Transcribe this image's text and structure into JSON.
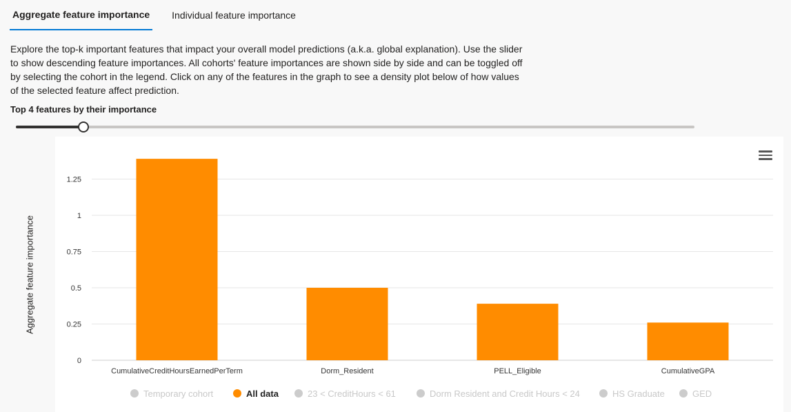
{
  "tabs": [
    {
      "label": "Aggregate feature importance",
      "active": true
    },
    {
      "label": "Individual feature importance",
      "active": false
    }
  ],
  "description": "Explore the top-k important features that impact your overall model predictions (a.k.a. global explanation). Use the slider to show descending feature importances. All cohorts' feature importances are shown side by side and can be toggled off by selecting the cohort in the legend. Click on any of the features in the graph to see a density plot below of how values of the selected feature affect prediction.",
  "top_k_label": "Top 4 features by their importance",
  "slider": {
    "value": 4,
    "fraction": 0.1
  },
  "chart_menu_icon": "hamburger-menu-icon",
  "colors": {
    "accent": "#0078d4",
    "bar": "#ff8c00",
    "legend_off": "#cccccc"
  },
  "chart_data": {
    "type": "bar",
    "categories": [
      "CumulativeCreditHoursEarnedPerTerm",
      "Dorm_Resident",
      "PELL_Eligible",
      "CumulativeGPA"
    ],
    "series": [
      {
        "name": "All data",
        "values": [
          1.39,
          0.5,
          0.39,
          0.26
        ],
        "color": "#ff8c00"
      }
    ],
    "ylabel": "Aggregate feature importance",
    "yticks": [
      "0",
      "0.25",
      "0.5",
      "0.75",
      "1",
      "1.25"
    ],
    "ylim": [
      0,
      1.45
    ],
    "grid": true,
    "legend_position": "bottom",
    "legend": [
      {
        "label": "Temporary cohort",
        "enabled": false
      },
      {
        "label": "All data",
        "enabled": true
      },
      {
        "label": "23 < CreditHours < 61",
        "enabled": false
      },
      {
        "label": "Dorm Resident and Credit Hours < 24",
        "enabled": false
      },
      {
        "label": "HS Graduate",
        "enabled": false
      },
      {
        "label": "GED",
        "enabled": false
      }
    ]
  }
}
